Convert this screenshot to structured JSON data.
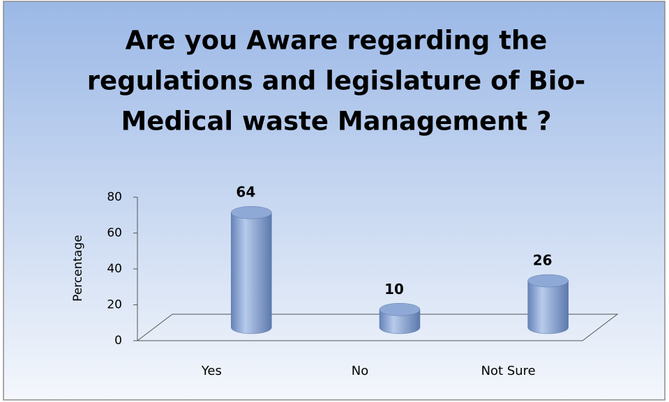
{
  "chart_data": {
    "type": "bar",
    "title": [
      "Are you Aware regarding the",
      "regulations and legislature of Bio-",
      "Medical waste Management ?"
    ],
    "y_axis_label": "Percentage",
    "categories": [
      "Yes",
      "No",
      "Not Sure"
    ],
    "values": [
      64,
      10,
      26
    ],
    "color": "#7f9fd3",
    "ylim": [
      0,
      80
    ],
    "yticks": [
      0,
      20,
      40,
      60,
      80
    ]
  }
}
